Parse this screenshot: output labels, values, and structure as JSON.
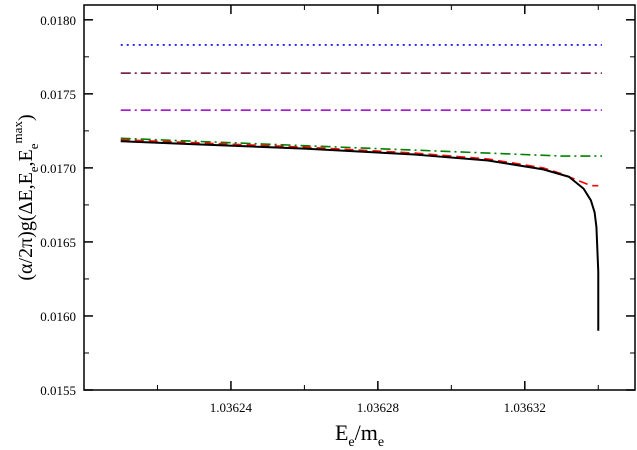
{
  "chart_data": {
    "type": "line",
    "xlabel": {
      "main": "E",
      "sub1": "e",
      "slash": "/m",
      "sub2": "e"
    },
    "ylabel": {
      "prefix": "(α/2π)g(ΔE,E",
      "sub1": "e",
      "mid": ",E",
      "sub2": "e",
      "sup": "max",
      "suffix": ")"
    },
    "xlim": [
      1.0362,
      1.03635
    ],
    "ylim": [
      0.0155,
      0.0181
    ],
    "x_ticks": [
      1.03624,
      1.03628,
      1.03632
    ],
    "x_tick_labels": [
      "1.03624",
      "1.03628",
      "1.03632"
    ],
    "y_ticks": [
      0.0155,
      0.016,
      0.0165,
      0.017,
      0.0175,
      0.018
    ],
    "y_tick_labels": [
      "0.0155",
      "0.0160",
      "0.0165",
      "0.0170",
      "0.0175",
      "0.0180"
    ],
    "grid": false,
    "series": [
      {
        "color": "#0000ff",
        "dash": "dotted",
        "x": [
          1.03621,
          1.036341
        ],
        "y": [
          0.01783,
          0.01783
        ]
      },
      {
        "color": "#660033",
        "dash": "dash-dot",
        "x": [
          1.03621,
          1.036341
        ],
        "y": [
          0.01764,
          0.01764
        ]
      },
      {
        "color": "#9900cc",
        "dash": "dash-dot",
        "x": [
          1.03621,
          1.036341
        ],
        "y": [
          0.01739,
          0.01739
        ]
      },
      {
        "color": "#008000",
        "dash": "dash-dot",
        "x": [
          1.03621,
          1.03623,
          1.03626,
          1.03629,
          1.03631,
          1.03633,
          1.036341
        ],
        "y": [
          0.0172,
          0.01718,
          0.01715,
          0.01712,
          0.0171,
          0.01708,
          0.01708
        ]
      },
      {
        "color": "#ff0000",
        "dash": "dashed",
        "x": [
          1.03621,
          1.03623,
          1.03626,
          1.03629,
          1.03631,
          1.036325,
          1.03633,
          1.036335,
          1.036338,
          1.03634
        ],
        "y": [
          0.01719,
          0.01717,
          0.01714,
          0.0171,
          0.01706,
          0.017,
          0.01696,
          0.01691,
          0.01688,
          0.01688
        ]
      },
      {
        "color": "#000000",
        "dash": "solid",
        "x": [
          1.03621,
          1.03623,
          1.03626,
          1.03629,
          1.03631,
          1.036325,
          1.036332,
          1.036336,
          1.036338,
          1.036339,
          1.0363395,
          1.03634,
          1.03634
        ],
        "y": [
          0.01718,
          0.01716,
          0.01713,
          0.01709,
          0.01705,
          0.01699,
          0.01694,
          0.01686,
          0.01678,
          0.0167,
          0.0166,
          0.0163,
          0.0159
        ]
      }
    ]
  }
}
